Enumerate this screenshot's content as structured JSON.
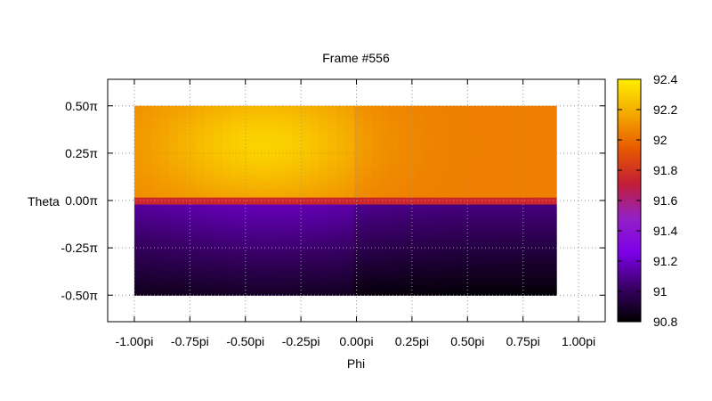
{
  "chart_data": {
    "type": "heatmap",
    "title": "Frame #556",
    "xlabel": "Phi",
    "ylabel": "Theta",
    "xlim": [
      -1.12,
      1.12
    ],
    "ylim": [
      -0.64,
      0.64
    ],
    "x_ticks": [
      {
        "value": -1.0,
        "label": "-1.00pi"
      },
      {
        "value": -0.75,
        "label": "-0.75pi"
      },
      {
        "value": -0.5,
        "label": "-0.50pi"
      },
      {
        "value": -0.25,
        "label": "-0.25pi"
      },
      {
        "value": 0.0,
        "label": "0.00pi"
      },
      {
        "value": 0.25,
        "label": "0.25pi"
      },
      {
        "value": 0.5,
        "label": "0.50pi"
      },
      {
        "value": 0.75,
        "label": "0.75pi"
      },
      {
        "value": 1.0,
        "label": "1.00pi"
      }
    ],
    "y_ticks": [
      {
        "value": 0.5,
        "label": "0.50π"
      },
      {
        "value": 0.25,
        "label": "0.25π"
      },
      {
        "value": 0.0,
        "label": "0.00π"
      },
      {
        "value": -0.25,
        "label": "-0.25π"
      },
      {
        "value": -0.5,
        "label": "-0.50π"
      }
    ],
    "grid": true,
    "data_extent": {
      "phi": [
        -1.0,
        0.9
      ],
      "theta": [
        -0.5,
        0.5
      ]
    },
    "colorbar": {
      "range": [
        90.8,
        92.4
      ],
      "ticks": [
        {
          "value": 92.4,
          "label": "92.4"
        },
        {
          "value": 92.2,
          "label": "92.2"
        },
        {
          "value": 92.0,
          "label": "92"
        },
        {
          "value": 91.8,
          "label": "91.8"
        },
        {
          "value": 91.6,
          "label": "91.6"
        },
        {
          "value": 91.4,
          "label": "91.4"
        },
        {
          "value": 91.2,
          "label": "91.2"
        },
        {
          "value": 91.0,
          "label": "91"
        },
        {
          "value": 90.8,
          "label": "90.8"
        }
      ],
      "palette": [
        "#000000",
        "#3a0068",
        "#7d00e8",
        "#9420c4",
        "#c21e34",
        "#e85a00",
        "#f4a800",
        "#ffee00"
      ]
    },
    "field": {
      "upper": {
        "base": 92.05,
        "hotspot": {
          "phi": -0.42,
          "theta": 0.3,
          "peak": 92.28,
          "radius": 0.45
        }
      },
      "band": {
        "theta": 0.0,
        "value": 91.75
      },
      "lower": {
        "top": 91.12,
        "bottom": 90.85,
        "hotspot": {
          "phi": -0.4,
          "theta": -0.08,
          "peak": 91.2,
          "radius": 0.5
        }
      }
    }
  }
}
